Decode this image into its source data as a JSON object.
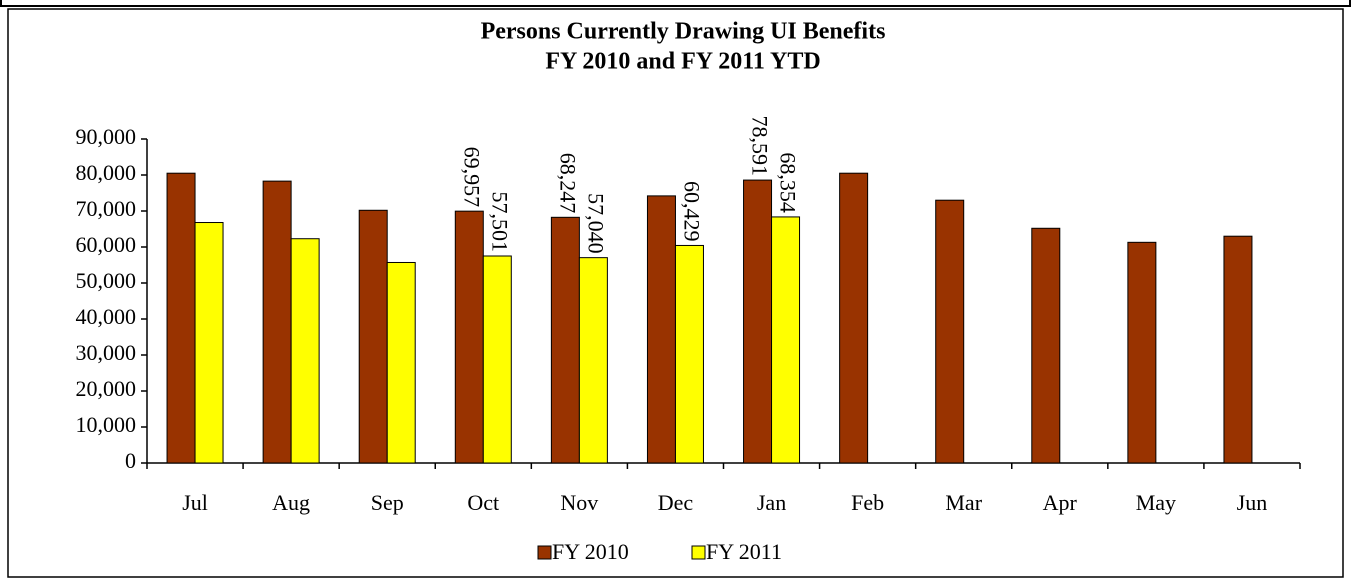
{
  "chart_data": {
    "type": "bar",
    "title": "Persons Currently Drawing UI Benefits",
    "subtitle": "FY 2010 and FY 2011 YTD",
    "categories": [
      "Jul",
      "Aug",
      "Sep",
      "Oct",
      "Nov",
      "Dec",
      "Jan",
      "Feb",
      "Mar",
      "Apr",
      "May",
      "Jun"
    ],
    "series": [
      {
        "name": "FY 2010",
        "color": "#993300",
        "values": [
          80500,
          78300,
          70200,
          69957,
          68247,
          74200,
          78591,
          80500,
          73000,
          65200,
          61300,
          63000
        ],
        "value_labels": [
          null,
          null,
          null,
          "69,957",
          "68,247",
          null,
          "78,591",
          null,
          null,
          null,
          null,
          null
        ]
      },
      {
        "name": "FY 2011",
        "color": "#ffff00",
        "values": [
          66800,
          62300,
          55700,
          57501,
          57040,
          60429,
          68354,
          null,
          null,
          null,
          null,
          null
        ],
        "value_labels": [
          null,
          null,
          null,
          "57,501",
          "57,040",
          "60,429",
          "68,354",
          null,
          null,
          null,
          null,
          null
        ]
      }
    ],
    "ylim": [
      0,
      90000
    ],
    "yticks": [
      0,
      {
        "value": 10000,
        "label": "10,000"
      },
      {
        "value": 20000,
        "label": "20,000"
      },
      {
        "value": 30000,
        "label": "30,000"
      },
      {
        "value": 40000,
        "label": "40,000"
      },
      {
        "value": 50000,
        "label": "50,000"
      },
      {
        "value": 60000,
        "label": "60,000"
      },
      {
        "value": 70000,
        "label": "70,000"
      },
      {
        "value": 80000,
        "label": "80,000"
      },
      {
        "value": 90000,
        "label": "90,000"
      }
    ],
    "legend": "bottom"
  }
}
